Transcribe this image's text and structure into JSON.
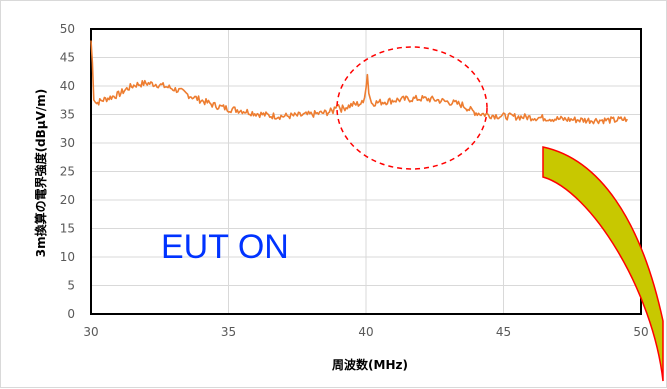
{
  "chart_data": {
    "type": "line",
    "title": "",
    "xlabel": "周波数(MHz)",
    "ylabel": "3m換算の電界強度(dBμV/m)",
    "xlim": [
      30,
      50
    ],
    "ylim": [
      0,
      50
    ],
    "x_ticks": [
      "30",
      "35",
      "40",
      "45",
      "50"
    ],
    "y_ticks": [
      "0",
      "5",
      "10",
      "15",
      "20",
      "25",
      "30",
      "35",
      "40",
      "45",
      "50"
    ],
    "grid": true,
    "series": [
      {
        "color": "#ed7d31",
        "points": [
          [
            30.0,
            48
          ],
          [
            30.05,
            44
          ],
          [
            30.1,
            38
          ],
          [
            30.2,
            37
          ],
          [
            30.4,
            37.5
          ],
          [
            30.7,
            38
          ],
          [
            31.0,
            38.5
          ],
          [
            31.3,
            39.5
          ],
          [
            31.6,
            40.2
          ],
          [
            32.0,
            40.5
          ],
          [
            32.4,
            40.3
          ],
          [
            32.8,
            39.8
          ],
          [
            33.2,
            39.2
          ],
          [
            33.6,
            38.3
          ],
          [
            34.0,
            37.5
          ],
          [
            34.5,
            36.6
          ],
          [
            35.0,
            36.0
          ],
          [
            35.5,
            35.7
          ],
          [
            36.0,
            35.2
          ],
          [
            36.5,
            34.8
          ],
          [
            37.0,
            34.7
          ],
          [
            37.5,
            34.8
          ],
          [
            38.0,
            35.0
          ],
          [
            38.5,
            35.3
          ],
          [
            38.8,
            35.6
          ],
          [
            38.95,
            37.0
          ],
          [
            39.1,
            36.0
          ],
          [
            39.5,
            36.7
          ],
          [
            39.9,
            37.0
          ],
          [
            40.0,
            40.0
          ],
          [
            40.05,
            42.0
          ],
          [
            40.1,
            39.0
          ],
          [
            40.2,
            37.0
          ],
          [
            40.6,
            37.2
          ],
          [
            41.0,
            37.5
          ],
          [
            41.5,
            37.7
          ],
          [
            42.0,
            37.8
          ],
          [
            42.5,
            37.6
          ],
          [
            43.0,
            37.2
          ],
          [
            43.5,
            36.7
          ],
          [
            43.8,
            35.8
          ],
          [
            44.0,
            35.3
          ],
          [
            44.5,
            34.9
          ],
          [
            45.0,
            34.7
          ],
          [
            45.5,
            34.6
          ],
          [
            46.0,
            34.5
          ],
          [
            46.5,
            34.4
          ],
          [
            47.0,
            34.2
          ],
          [
            47.5,
            34.1
          ],
          [
            48.0,
            34.0
          ],
          [
            48.5,
            34.0
          ],
          [
            49.0,
            34.0
          ],
          [
            49.5,
            34.2
          ]
        ]
      }
    ]
  },
  "annotation": {
    "label": "EUT ON",
    "label_color": "#0033ff",
    "circle_color": "#ff0000",
    "arrow_fill": "#c8c800",
    "arrow_stroke": "#ff0000"
  }
}
